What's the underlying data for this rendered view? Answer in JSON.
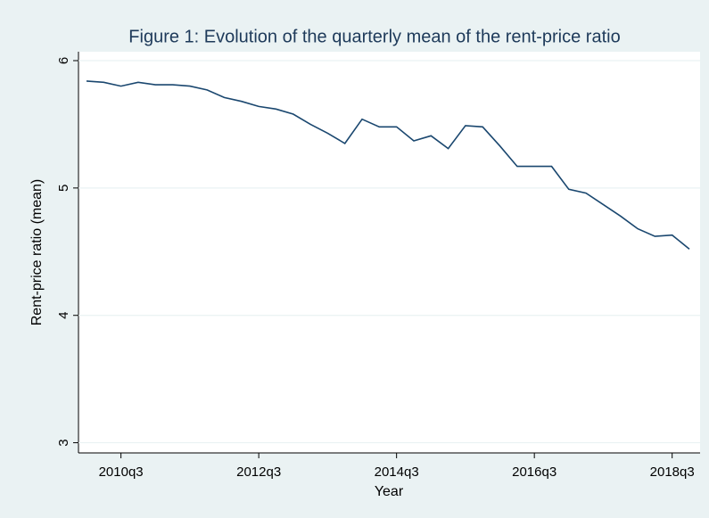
{
  "chart_data": {
    "type": "line",
    "title": "Figure 1: Evolution of the quarterly mean of the rent-price ratio",
    "x_label": "Year",
    "y_label": "Rent-price ratio (mean)",
    "categories": [
      null,
      null,
      "2010q3",
      null,
      null,
      null,
      null,
      null,
      null,
      null,
      "2012q3",
      null,
      null,
      null,
      null,
      null,
      null,
      null,
      "2014q3",
      null,
      null,
      null,
      null,
      null,
      null,
      null,
      "2016q3",
      null,
      null,
      null,
      null,
      null,
      null,
      null,
      "2018q3",
      null
    ],
    "series": [
      {
        "name": "Rent-price ratio (mean)",
        "color": "#1a476f",
        "values": [
          5.84,
          5.83,
          5.8,
          5.83,
          5.81,
          5.81,
          5.8,
          5.77,
          5.71,
          5.68,
          5.64,
          5.62,
          5.58,
          5.5,
          5.43,
          5.35,
          5.54,
          5.48,
          5.48,
          5.37,
          5.41,
          5.31,
          5.49,
          5.48,
          5.33,
          5.17,
          5.17,
          5.17,
          4.99,
          4.96,
          4.87,
          4.78,
          4.68,
          4.62,
          4.63,
          4.52
        ]
      }
    ],
    "ylim": [
      2.92,
      6.07
    ],
    "yticks": [
      3,
      4,
      5,
      6
    ],
    "grid": true
  }
}
